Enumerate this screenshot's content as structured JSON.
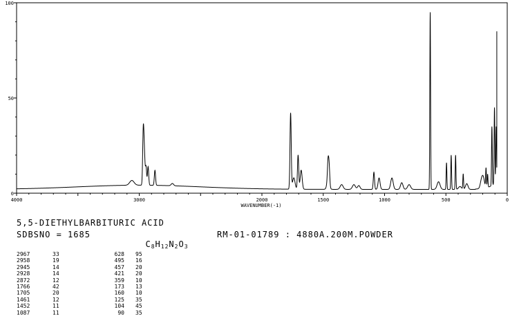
{
  "chart_data": {
    "type": "line",
    "title": "",
    "xlabel": "WAVENUMBER(-1)",
    "ylabel": "",
    "xlim": [
      4000,
      0
    ],
    "ylim": [
      0,
      100
    ],
    "x_ticks": [
      "4000",
      "3000",
      "2000",
      "1500",
      "1000",
      "500",
      "0"
    ],
    "y_ticks": [
      "100",
      "50",
      "0"
    ],
    "grid": false,
    "peaks": [
      [
        2967,
        33
      ],
      [
        2958,
        19
      ],
      [
        2945,
        14
      ],
      [
        2928,
        14
      ],
      [
        2872,
        12
      ],
      [
        1766,
        42
      ],
      [
        1705,
        20
      ],
      [
        1461,
        12
      ],
      [
        1452,
        11
      ],
      [
        1087,
        11
      ],
      [
        628,
        95
      ],
      [
        495,
        16
      ],
      [
        457,
        20
      ],
      [
        421,
        20
      ],
      [
        359,
        10
      ],
      [
        173,
        13
      ],
      [
        160,
        10
      ],
      [
        125,
        35
      ],
      [
        104,
        45
      ],
      [
        90,
        35
      ]
    ]
  },
  "compound": {
    "name": "5,5-DIETHYLBARBITURIC ACID",
    "sdbs": "SDBSNO = 1685",
    "formula_parts": [
      "C",
      "8",
      "H",
      "12",
      "N",
      "2",
      "O",
      "3"
    ],
    "sample": "RM-01-01789 : 4880A.200M.POWDER"
  },
  "peak_table": {
    "col1": [
      {
        "w": "2967",
        "i": "33"
      },
      {
        "w": "2958",
        "i": "19"
      },
      {
        "w": "2945",
        "i": "14"
      },
      {
        "w": "2928",
        "i": "14"
      },
      {
        "w": "2872",
        "i": "12"
      },
      {
        "w": "1766",
        "i": "42"
      },
      {
        "w": "1705",
        "i": "20"
      },
      {
        "w": "1461",
        "i": "12"
      },
      {
        "w": "1452",
        "i": "11"
      },
      {
        "w": "1087",
        "i": "11"
      }
    ],
    "col2": [
      {
        "w": "628",
        "i": "95"
      },
      {
        "w": "495",
        "i": "16"
      },
      {
        "w": "457",
        "i": "20"
      },
      {
        "w": "421",
        "i": "20"
      },
      {
        "w": "359",
        "i": "10"
      },
      {
        "w": "173",
        "i": "13"
      },
      {
        "w": "160",
        "i": "10"
      },
      {
        "w": "125",
        "i": "35"
      },
      {
        "w": "104",
        "i": "45"
      },
      {
        "w": "90",
        "i": "35"
      }
    ]
  }
}
